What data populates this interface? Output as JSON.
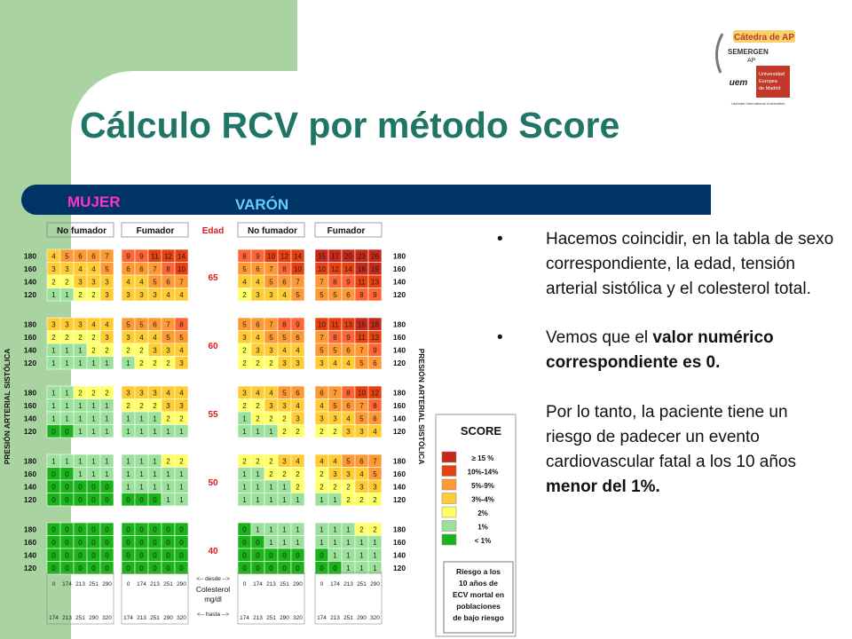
{
  "slide": {
    "title": "Cálculo RCV por método Score",
    "mujer_label": "MUJER",
    "varon_label": "VARÓN"
  },
  "logo": {
    "catedra": "Cátedra de AP",
    "semergen": "SEMERGEN",
    "ap": "AP",
    "uem": "uem",
    "universidad_line1": "Universidad",
    "universidad_line2": "Europea",
    "universidad_line3": "de Madrid",
    "laureate": "Laureate International Universities"
  },
  "table": {
    "group_headers": [
      "No fumador",
      "Fumador",
      "Edad",
      "No fumador",
      "Fumador"
    ],
    "vertical_label": "PRESIÓN ARTERIAL SISTÓLICA",
    "ages": [
      "65",
      "60",
      "55",
      "50",
      "40"
    ],
    "pressures": [
      "180",
      "160",
      "140",
      "120"
    ],
    "desde": "<-- desde -->",
    "colesterol": "Colesterol",
    "mgdl": "mg/dl",
    "hasta": "<-- hasta -->",
    "chol_from": [
      "0",
      "174",
      "213",
      "251",
      "290"
    ],
    "chol_to": [
      "174",
      "213",
      "251",
      "290",
      "320"
    ],
    "colors": [
      "#19b419",
      "#9be09b",
      "#ffff66",
      "#ffcc33",
      "#ff9933",
      "#ff6633",
      "#e8400f",
      "#c8281a"
    ],
    "women": {
      "nonsmoker": [
        [
          [
            4,
            5,
            6,
            6,
            7
          ],
          [
            3,
            3,
            4,
            4,
            5
          ],
          [
            2,
            2,
            3,
            3,
            3
          ],
          [
            1,
            1,
            2,
            2,
            3
          ]
        ],
        [
          [
            3,
            3,
            3,
            4,
            4
          ],
          [
            2,
            2,
            2,
            2,
            3
          ],
          [
            1,
            1,
            1,
            2,
            2
          ],
          [
            1,
            1,
            1,
            1,
            1
          ]
        ],
        [
          [
            1,
            1,
            2,
            2,
            2
          ],
          [
            1,
            1,
            1,
            1,
            1
          ],
          [
            1,
            1,
            1,
            1,
            1
          ],
          [
            0,
            0,
            1,
            1,
            1
          ]
        ],
        [
          [
            1,
            1,
            1,
            1,
            1
          ],
          [
            0,
            0,
            1,
            1,
            1
          ],
          [
            0,
            0,
            0,
            0,
            0
          ],
          [
            0,
            0,
            0,
            0,
            0
          ]
        ],
        [
          [
            0,
            0,
            0,
            0,
            0
          ],
          [
            0,
            0,
            0,
            0,
            0
          ],
          [
            0,
            0,
            0,
            0,
            0
          ],
          [
            0,
            0,
            0,
            0,
            0
          ]
        ]
      ],
      "smoker": [
        [
          [
            9,
            9,
            11,
            12,
            14
          ],
          [
            6,
            6,
            7,
            8,
            10
          ],
          [
            4,
            4,
            5,
            6,
            7
          ],
          [
            3,
            3,
            3,
            4,
            4
          ]
        ],
        [
          [
            5,
            5,
            6,
            7,
            8
          ],
          [
            3,
            4,
            4,
            5,
            5
          ],
          [
            2,
            2,
            3,
            3,
            4
          ],
          [
            1,
            2,
            2,
            2,
            3
          ]
        ],
        [
          [
            3,
            3,
            3,
            4,
            4
          ],
          [
            2,
            2,
            2,
            3,
            3
          ],
          [
            1,
            1,
            1,
            2,
            2
          ],
          [
            1,
            1,
            1,
            1,
            1
          ]
        ],
        [
          [
            1,
            1,
            1,
            2,
            2
          ],
          [
            1,
            1,
            1,
            1,
            1
          ],
          [
            1,
            1,
            1,
            1,
            1
          ],
          [
            0,
            0,
            0,
            1,
            1
          ]
        ],
        [
          [
            0,
            0,
            0,
            0,
            0
          ],
          [
            0,
            0,
            0,
            0,
            0
          ],
          [
            0,
            0,
            0,
            0,
            0
          ],
          [
            0,
            0,
            0,
            0,
            0
          ]
        ]
      ]
    },
    "men": {
      "nonsmoker": [
        [
          [
            8,
            9,
            10,
            12,
            14
          ],
          [
            5,
            6,
            7,
            8,
            10
          ],
          [
            4,
            4,
            5,
            6,
            7
          ],
          [
            2,
            3,
            3,
            4,
            5
          ]
        ],
        [
          [
            5,
            6,
            7,
            8,
            9
          ],
          [
            3,
            4,
            5,
            5,
            6
          ],
          [
            2,
            3,
            3,
            4,
            4
          ],
          [
            2,
            2,
            2,
            3,
            3
          ]
        ],
        [
          [
            3,
            4,
            4,
            5,
            6
          ],
          [
            2,
            2,
            3,
            3,
            4
          ],
          [
            1,
            2,
            2,
            2,
            3
          ],
          [
            1,
            1,
            1,
            2,
            2
          ]
        ],
        [
          [
            2,
            2,
            2,
            3,
            4
          ],
          [
            1,
            1,
            2,
            2,
            2
          ],
          [
            1,
            1,
            1,
            1,
            2
          ],
          [
            1,
            1,
            1,
            1,
            1
          ]
        ],
        [
          [
            0,
            1,
            1,
            1,
            1
          ],
          [
            0,
            0,
            1,
            1,
            1
          ],
          [
            0,
            0,
            0,
            0,
            0
          ],
          [
            0,
            0,
            0,
            0,
            0
          ]
        ]
      ],
      "smoker": [
        [
          [
            15,
            17,
            20,
            23,
            26
          ],
          [
            10,
            12,
            14,
            16,
            19
          ],
          [
            7,
            8,
            9,
            11,
            13
          ],
          [
            5,
            5,
            6,
            8,
            9
          ]
        ],
        [
          [
            10,
            11,
            13,
            15,
            18
          ],
          [
            7,
            8,
            9,
            11,
            13
          ],
          [
            5,
            5,
            6,
            7,
            9
          ],
          [
            3,
            4,
            4,
            5,
            6
          ]
        ],
        [
          [
            6,
            7,
            8,
            10,
            12
          ],
          [
            4,
            5,
            6,
            7,
            8
          ],
          [
            3,
            3,
            4,
            5,
            6
          ],
          [
            2,
            2,
            3,
            3,
            4
          ]
        ],
        [
          [
            4,
            4,
            5,
            6,
            7
          ],
          [
            2,
            3,
            3,
            4,
            5
          ],
          [
            2,
            2,
            2,
            3,
            3
          ],
          [
            1,
            1,
            2,
            2,
            2
          ]
        ],
        [
          [
            1,
            1,
            1,
            2,
            2
          ],
          [
            1,
            1,
            1,
            1,
            1
          ],
          [
            0,
            1,
            1,
            1,
            1
          ],
          [
            0,
            0,
            1,
            1,
            1
          ]
        ]
      ]
    }
  },
  "legend": {
    "title": "SCORE",
    "items": [
      {
        "label": "≥ 15 %",
        "color": "#c8281a"
      },
      {
        "label": "10%-14%",
        "color": "#e8400f"
      },
      {
        "label": "5%-9%",
        "color": "#ff9933"
      },
      {
        "label": "3%-4%",
        "color": "#ffcc33"
      },
      {
        "label": "2%",
        "color": "#ffff66"
      },
      {
        "label": "1%",
        "color": "#9be09b"
      },
      {
        "label": "< 1%",
        "color": "#19b419"
      }
    ],
    "note_lines": [
      "Riesgo a los",
      "10 años de",
      "ECV mortal en",
      "poblaciones",
      "de bajo riesgo"
    ]
  },
  "bullets": {
    "b1": "Hacemos coincidir, en la tabla de sexo correspondiente,  la edad, tensión arterial sistólica y el colesterol total.",
    "b2_pre": "Vemos que el ",
    "b2_bold": "valor numérico correspondiente es 0.",
    "p3_pre": "Por lo tanto, la paciente tiene un riesgo de padecer un evento cardiovascular fatal a los 10 años ",
    "p3_bold": "menor del 1%."
  }
}
